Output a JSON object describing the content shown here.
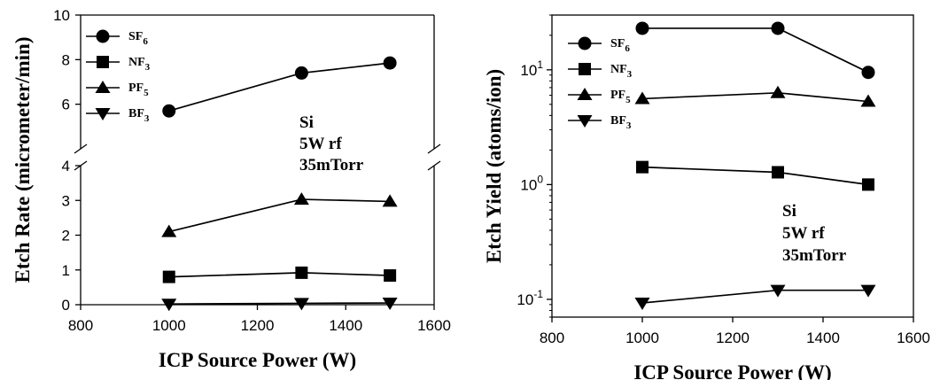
{
  "chart_data": [
    {
      "type": "line",
      "xlabel": "ICP Source Power (W)",
      "ylabel": "Etch Rate (micrometer/min)",
      "xlim": [
        800,
        1600
      ],
      "xticks": [
        "800",
        "1000",
        "1200",
        "1400",
        "1600"
      ],
      "y_axis": "broken",
      "ylim_lower": [
        0,
        4
      ],
      "ylim_upper": [
        4,
        10
      ],
      "yticks_lower": [
        "0",
        "1",
        "2",
        "3",
        "4"
      ],
      "yticks_upper": [
        "6",
        "8",
        "10"
      ],
      "legend_position": "top-left",
      "grid": false,
      "x": [
        1000,
        1300,
        1500
      ],
      "series": [
        {
          "name": "SF",
          "sub": "6",
          "marker": "circle",
          "values": [
            5.7,
            7.4,
            7.85
          ]
        },
        {
          "name": "NF",
          "sub": "3",
          "marker": "square",
          "values": [
            0.8,
            0.92,
            0.84
          ]
        },
        {
          "name": "PF",
          "sub": "5",
          "marker": "triangle-up",
          "values": [
            2.1,
            3.03,
            2.97
          ]
        },
        {
          "name": "BF",
          "sub": "3",
          "marker": "triangle-down",
          "values": [
            0.02,
            0.04,
            0.05
          ]
        }
      ],
      "annotation": [
        "Si",
        "5W rf",
        "35mTorr"
      ]
    },
    {
      "type": "line",
      "xlabel": "ICP Source Power (W)",
      "ylabel": "Etch Yield (atoms/ion)",
      "xlim": [
        800,
        1600
      ],
      "xticks": [
        "800",
        "1000",
        "1200",
        "1400",
        "1600"
      ],
      "y_scale": "log",
      "ylim": [
        0.07,
        30
      ],
      "yticks": [
        {
          "value": 0.1,
          "base": "10",
          "exp": "-1"
        },
        {
          "value": 1,
          "base": "10",
          "exp": "0"
        },
        {
          "value": 10,
          "base": "10",
          "exp": "1"
        }
      ],
      "legend_position": "top-left",
      "grid": false,
      "x": [
        1000,
        1300,
        1500
      ],
      "series": [
        {
          "name": "SF",
          "sub": "6",
          "marker": "circle",
          "values": [
            23,
            23,
            9.5
          ]
        },
        {
          "name": "NF",
          "sub": "3",
          "marker": "square",
          "values": [
            1.42,
            1.28,
            1.0
          ]
        },
        {
          "name": "PF",
          "sub": "5",
          "marker": "triangle-up",
          "values": [
            5.6,
            6.3,
            5.3
          ]
        },
        {
          "name": "BF",
          "sub": "3",
          "marker": "triangle-down",
          "values": [
            0.093,
            0.12,
            0.12
          ]
        }
      ],
      "annotation": [
        "Si",
        "5W rf",
        "35mTorr"
      ]
    }
  ]
}
